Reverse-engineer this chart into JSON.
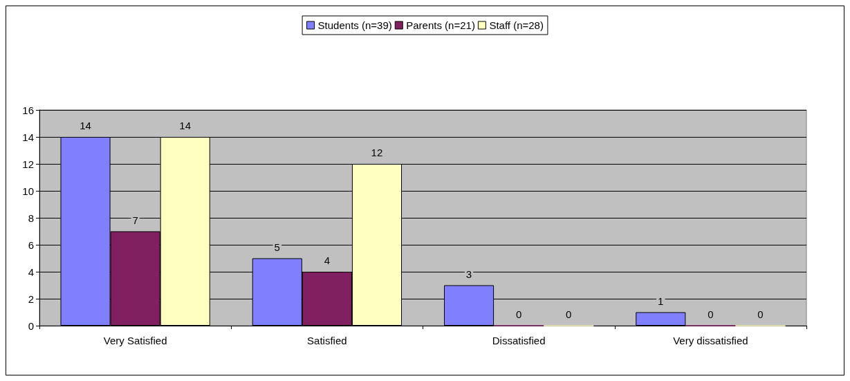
{
  "chart_data": {
    "type": "bar",
    "categories": [
      "Very Satisfied",
      "Satisfied",
      "Dissatisfied",
      "Very dissatisfied"
    ],
    "series": [
      {
        "name": "Students (n=39)",
        "color": "#8080ff",
        "values": [
          14,
          5,
          3,
          1
        ]
      },
      {
        "name": "Parents (n=21)",
        "color": "#802060",
        "values": [
          7,
          4,
          0,
          0
        ]
      },
      {
        "name": "Staff (n=28)",
        "color": "#ffffc0",
        "values": [
          14,
          12,
          0,
          0
        ]
      }
    ],
    "ylim": [
      0,
      16
    ],
    "yticks": [
      0,
      2,
      4,
      6,
      8,
      10,
      12,
      14,
      16
    ],
    "grid": "y",
    "legend": "top",
    "data_labels": true
  }
}
